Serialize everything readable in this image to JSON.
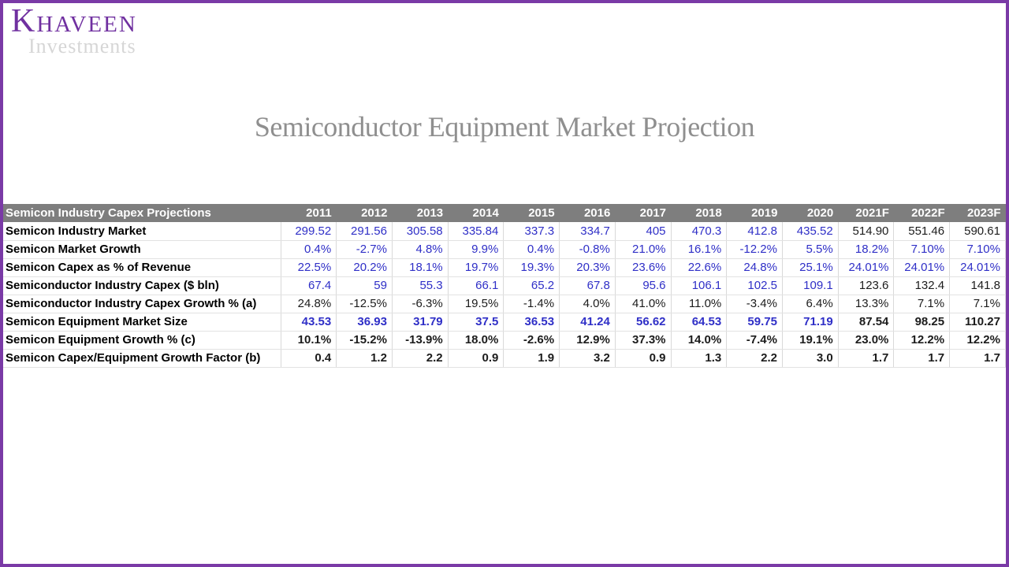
{
  "logo": {
    "brand_initial": "K",
    "brand_rest": "HAVEEN",
    "subtitle": "Investments",
    "brand_color": "#7030a0"
  },
  "title": "Semiconductor Equipment Market Projection",
  "colors": {
    "border_purple": "#7a3aa6",
    "header_bg": "#7e7e7e",
    "value_blue": "#2f2fc7",
    "title_gray": "#8f8f8f"
  },
  "table": {
    "header_label": "Semicon Industry Capex Projections",
    "years": [
      "2011",
      "2012",
      "2013",
      "2014",
      "2015",
      "2016",
      "2017",
      "2018",
      "2019",
      "2020",
      "2021F",
      "2022F",
      "2023F"
    ],
    "rows": [
      {
        "label": "Semicon Industry Market",
        "bold_values": false,
        "values": [
          "299.52",
          "291.56",
          "305.58",
          "335.84",
          "337.3",
          "334.7",
          "405",
          "470.3",
          "412.8",
          "435.52",
          "514.90",
          "551.46",
          "590.61"
        ],
        "colors": [
          "blue",
          "blue",
          "blue",
          "blue",
          "blue",
          "blue",
          "blue",
          "blue",
          "blue",
          "blue",
          "black",
          "black",
          "black"
        ]
      },
      {
        "label": "Semicon Market Growth",
        "bold_values": false,
        "values": [
          "0.4%",
          "-2.7%",
          "4.8%",
          "9.9%",
          "0.4%",
          "-0.8%",
          "21.0%",
          "16.1%",
          "-12.2%",
          "5.5%",
          "18.2%",
          "7.10%",
          "7.10%"
        ],
        "colors": [
          "blue",
          "blue",
          "blue",
          "blue",
          "blue",
          "blue",
          "blue",
          "blue",
          "blue",
          "blue",
          "blue",
          "blue",
          "blue"
        ]
      },
      {
        "label": "Semicon Capex as % of Revenue",
        "bold_values": false,
        "values": [
          "22.5%",
          "20.2%",
          "18.1%",
          "19.7%",
          "19.3%",
          "20.3%",
          "23.6%",
          "22.6%",
          "24.8%",
          "25.1%",
          "24.01%",
          "24.01%",
          "24.01%"
        ],
        "colors": [
          "blue",
          "blue",
          "blue",
          "blue",
          "blue",
          "blue",
          "blue",
          "blue",
          "blue",
          "blue",
          "blue",
          "blue",
          "blue"
        ]
      },
      {
        "label": "Semiconductor Industry Capex ($ bln)",
        "bold_values": false,
        "values": [
          "67.4",
          "59",
          "55.3",
          "66.1",
          "65.2",
          "67.8",
          "95.6",
          "106.1",
          "102.5",
          "109.1",
          "123.6",
          "132.4",
          "141.8"
        ],
        "colors": [
          "blue",
          "blue",
          "blue",
          "blue",
          "blue",
          "blue",
          "blue",
          "blue",
          "blue",
          "blue",
          "black",
          "black",
          "black"
        ]
      },
      {
        "label": "Semiconductor Industry Capex Growth % (a)",
        "bold_values": false,
        "values": [
          "24.8%",
          "-12.5%",
          "-6.3%",
          "19.5%",
          "-1.4%",
          "4.0%",
          "41.0%",
          "11.0%",
          "-3.4%",
          "6.4%",
          "13.3%",
          "7.1%",
          "7.1%"
        ],
        "colors": [
          "black",
          "black",
          "black",
          "black",
          "black",
          "black",
          "black",
          "black",
          "black",
          "black",
          "black",
          "black",
          "black"
        ]
      },
      {
        "label": "Semicon Equipment Market Size",
        "bold_values": true,
        "values": [
          "43.53",
          "36.93",
          "31.79",
          "37.5",
          "36.53",
          "41.24",
          "56.62",
          "64.53",
          "59.75",
          "71.19",
          "87.54",
          "98.25",
          "110.27"
        ],
        "colors": [
          "blue",
          "blue",
          "blue",
          "blue",
          "blue",
          "blue",
          "blue",
          "blue",
          "blue",
          "blue",
          "black",
          "black",
          "black"
        ]
      },
      {
        "label": "Semicon Equipment Growth % (c)",
        "bold_values": true,
        "values": [
          "10.1%",
          "-15.2%",
          "-13.9%",
          "18.0%",
          "-2.6%",
          "12.9%",
          "37.3%",
          "14.0%",
          "-7.4%",
          "19.1%",
          "23.0%",
          "12.2%",
          "12.2%"
        ],
        "colors": [
          "black",
          "black",
          "black",
          "black",
          "black",
          "black",
          "black",
          "black",
          "black",
          "black",
          "black",
          "black",
          "black"
        ]
      },
      {
        "label": "Semicon Capex/Equipment Growth Factor (b)",
        "bold_values": true,
        "values": [
          "0.4",
          "1.2",
          "2.2",
          "0.9",
          "1.9",
          "3.2",
          "0.9",
          "1.3",
          "2.2",
          "3.0",
          "1.7",
          "1.7",
          "1.7"
        ],
        "colors": [
          "black",
          "black",
          "black",
          "black",
          "black",
          "black",
          "black",
          "black",
          "black",
          "black",
          "black",
          "black",
          "black"
        ]
      }
    ]
  }
}
